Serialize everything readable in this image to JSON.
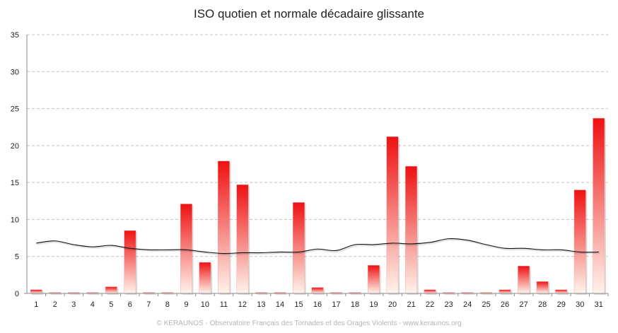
{
  "chart_data": {
    "type": "bar",
    "title": "ISO quotien et normale décadaire glissante",
    "xlabel": "",
    "ylabel": "",
    "ylim": [
      0,
      35
    ],
    "yticks": [
      0,
      5,
      10,
      15,
      20,
      25,
      30,
      35
    ],
    "grid": true,
    "legend": "none",
    "categories": [
      "1",
      "2",
      "3",
      "4",
      "5",
      "6",
      "7",
      "8",
      "9",
      "10",
      "11",
      "12",
      "13",
      "14",
      "15",
      "16",
      "17",
      "18",
      "19",
      "20",
      "21",
      "22",
      "23",
      "24",
      "25",
      "26",
      "27",
      "28",
      "29",
      "30",
      "31"
    ],
    "series": [
      {
        "type": "bar",
        "values": [
          0.5,
          0,
          0,
          0,
          0.9,
          8.5,
          0.1,
          0,
          12.1,
          4.2,
          17.9,
          14.7,
          0.1,
          0,
          12.3,
          0.8,
          0,
          0,
          3.8,
          21.2,
          17.2,
          0.5,
          0,
          0,
          0.1,
          0.5,
          3.7,
          1.6,
          0.5,
          14.0,
          23.7
        ],
        "color_top": "#ee1111",
        "color_bottom": "#fff4ec"
      },
      {
        "type": "line",
        "values": [
          6.8,
          7.1,
          6.6,
          6.3,
          6.5,
          6.1,
          5.9,
          5.9,
          5.9,
          5.6,
          5.4,
          5.5,
          5.5,
          5.6,
          5.6,
          6.0,
          5.8,
          6.6,
          6.6,
          6.8,
          6.7,
          6.9,
          7.4,
          7.2,
          6.6,
          6.1,
          6.1,
          5.9,
          5.9,
          5.6,
          5.6
        ],
        "color": "#111111"
      }
    ]
  },
  "credit": "© KERAUNOS - Observatoire Français des Tornades et des Orages Violents - www.keraunos.org"
}
